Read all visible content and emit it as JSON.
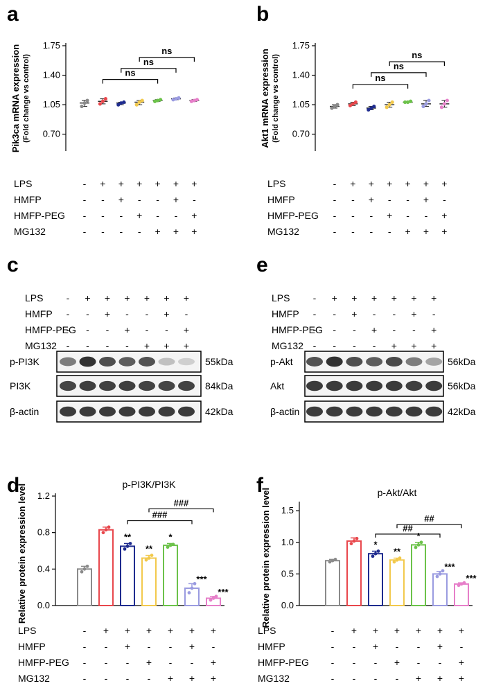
{
  "panel_letters": {
    "a": "a",
    "b": "b",
    "c": "c",
    "e": "e",
    "d": "d",
    "f": "f"
  },
  "row_labels": [
    "LPS",
    "HMFP",
    "HMFP-PEG",
    "MG132"
  ],
  "treatment_matrix": [
    [
      "-",
      "+",
      "+",
      "+",
      "+",
      "+",
      "+"
    ],
    [
      "-",
      "-",
      "+",
      "-",
      "-",
      "+",
      "-"
    ],
    [
      "-",
      "-",
      "-",
      "+",
      "-",
      "-",
      "+"
    ],
    [
      "-",
      "-",
      "-",
      "-",
      "+",
      "+",
      "+"
    ]
  ],
  "group_colors": [
    "#8a8a8a",
    "#e8474c",
    "#1f2c8f",
    "#f2c94c",
    "#6cc24a",
    "#9a9be0",
    "#e67fc9"
  ],
  "blots": {
    "c": {
      "bands": [
        {
          "name": "p-PI3K",
          "kda": "55kDa",
          "intensity": [
            0.55,
            0.95,
            0.8,
            0.72,
            0.78,
            0.2,
            0.12
          ]
        },
        {
          "name": "PI3K",
          "kda": "84kDa",
          "intensity": [
            0.85,
            0.88,
            0.87,
            0.88,
            0.86,
            0.85,
            0.86
          ]
        },
        {
          "name": "β-actin",
          "kda": "42kDa",
          "intensity": [
            0.9,
            0.9,
            0.9,
            0.9,
            0.9,
            0.9,
            0.9
          ]
        }
      ]
    },
    "e": {
      "bands": [
        {
          "name": "p-Akt",
          "kda": "56kDa",
          "intensity": [
            0.78,
            0.95,
            0.8,
            0.72,
            0.82,
            0.55,
            0.35
          ]
        },
        {
          "name": "Akt",
          "kda": "56kDa",
          "intensity": [
            0.9,
            0.9,
            0.9,
            0.9,
            0.9,
            0.88,
            0.9
          ]
        },
        {
          "name": "β-actin",
          "kda": "42kDa",
          "intensity": [
            0.9,
            0.9,
            0.9,
            0.9,
            0.9,
            0.9,
            0.9
          ]
        }
      ]
    }
  },
  "chart_data": [
    {
      "id": "a",
      "type": "scatter",
      "title": "",
      "ylabel": "Pik3ca mRNA expression",
      "ylabel2": "(Fold change vs control)",
      "ylim": [
        0.5,
        1.75
      ],
      "yticks": [
        "0.70",
        "1.05",
        "1.40",
        "1.75"
      ],
      "ytick_values": [
        0.7,
        1.05,
        1.4,
        1.75
      ],
      "means": [
        1.07,
        1.09,
        1.07,
        1.08,
        1.1,
        1.12,
        1.1
      ],
      "points": [
        [
          1.03,
          1.07,
          1.1
        ],
        [
          1.06,
          1.09,
          1.12
        ],
        [
          1.05,
          1.07,
          1.08
        ],
        [
          1.05,
          1.08,
          1.1
        ],
        [
          1.09,
          1.1,
          1.11
        ],
        [
          1.11,
          1.12,
          1.13
        ],
        [
          1.09,
          1.1,
          1.11
        ]
      ],
      "comparisons": [
        {
          "from": 1,
          "to": 4,
          "label": "ns",
          "y": 1.35
        },
        {
          "from": 2,
          "to": 5,
          "label": "ns",
          "y": 1.48
        },
        {
          "from": 3,
          "to": 6,
          "label": "ns",
          "y": 1.61
        }
      ]
    },
    {
      "id": "b",
      "type": "scatter",
      "title": "",
      "ylabel": "Akt1 mRNA expression",
      "ylabel2": "(Fold change vs control)",
      "ylim": [
        0.5,
        1.75
      ],
      "yticks": [
        "0.70",
        "1.05",
        "1.40",
        "1.75"
      ],
      "ytick_values": [
        0.7,
        1.05,
        1.4,
        1.75
      ],
      "means": [
        1.03,
        1.06,
        1.01,
        1.05,
        1.08,
        1.06,
        1.06
      ],
      "points": [
        [
          1.01,
          1.03,
          1.05
        ],
        [
          1.04,
          1.06,
          1.08
        ],
        [
          0.99,
          1.01,
          1.03
        ],
        [
          1.02,
          1.05,
          1.08
        ],
        [
          1.08,
          1.08,
          1.09
        ],
        [
          1.03,
          1.06,
          1.1
        ],
        [
          1.02,
          1.06,
          1.1
        ]
      ],
      "comparisons": [
        {
          "from": 1,
          "to": 4,
          "label": "ns",
          "y": 1.29
        },
        {
          "from": 2,
          "to": 5,
          "label": "ns",
          "y": 1.43
        },
        {
          "from": 3,
          "to": 6,
          "label": "ns",
          "y": 1.56
        }
      ]
    },
    {
      "id": "d",
      "type": "bar",
      "title": "p-PI3K/PI3K",
      "ylabel": "Relative protein expression level",
      "ylim": [
        0,
        1.2
      ],
      "yticks": [
        "0.0",
        "0.4",
        "0.8",
        "1.2"
      ],
      "ytick_values": [
        0,
        0.4,
        0.8,
        1.2
      ],
      "values": [
        0.4,
        0.83,
        0.65,
        0.52,
        0.66,
        0.19,
        0.08
      ],
      "errors": [
        0.03,
        0.03,
        0.03,
        0.03,
        0.02,
        0.05,
        0.02
      ],
      "points": [
        [
          0.37,
          0.4,
          0.43
        ],
        [
          0.8,
          0.83,
          0.86
        ],
        [
          0.62,
          0.65,
          0.68
        ],
        [
          0.5,
          0.52,
          0.55
        ],
        [
          0.64,
          0.66,
          0.67
        ],
        [
          0.14,
          0.19,
          0.24
        ],
        [
          0.06,
          0.08,
          0.1
        ]
      ],
      "significance": [
        "",
        "",
        "**",
        "**",
        "*",
        "***",
        "***"
      ],
      "comparisons": [
        {
          "from": 2,
          "to": 5,
          "label": "###",
          "y": 0.93
        },
        {
          "from": 3,
          "to": 6,
          "label": "###",
          "y": 1.06
        }
      ]
    },
    {
      "id": "f",
      "type": "bar",
      "title": "p-Akt/Akt",
      "ylabel": "Relative protein expression level",
      "ylim": [
        0,
        1.6
      ],
      "yticks": [
        "0.0",
        "0.5",
        "1.0",
        "1.5"
      ],
      "ytick_values": [
        0,
        0.5,
        1.0,
        1.5
      ],
      "values": [
        0.71,
        1.02,
        0.82,
        0.72,
        0.96,
        0.5,
        0.34
      ],
      "errors": [
        0.02,
        0.05,
        0.04,
        0.03,
        0.04,
        0.04,
        0.02
      ],
      "points": [
        [
          0.69,
          0.71,
          0.73
        ],
        [
          0.98,
          1.02,
          1.06
        ],
        [
          0.78,
          0.82,
          0.86
        ],
        [
          0.69,
          0.72,
          0.75
        ],
        [
          0.92,
          0.96,
          1.0
        ],
        [
          0.46,
          0.5,
          0.55
        ],
        [
          0.32,
          0.34,
          0.36
        ]
      ],
      "significance": [
        "",
        "",
        "*",
        "**",
        "*",
        "***",
        "***"
      ],
      "comparisons": [
        {
          "from": 2,
          "to": 5,
          "label": "##",
          "y": 1.13
        },
        {
          "from": 3,
          "to": 6,
          "label": "##",
          "y": 1.28
        }
      ]
    }
  ]
}
